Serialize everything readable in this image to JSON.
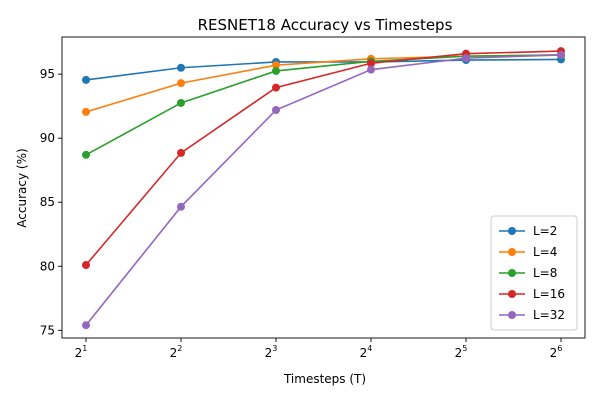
{
  "chart_data": {
    "type": "line",
    "title": "RESNET18 Accuracy vs Timesteps",
    "xlabel": "Timesteps (T)",
    "ylabel": "Accuracy (%)",
    "x_scale": "log2",
    "x": [
      2,
      4,
      8,
      16,
      32,
      64
    ],
    "x_tick_labels": [
      {
        "base": "2",
        "exp": "1"
      },
      {
        "base": "2",
        "exp": "2"
      },
      {
        "base": "2",
        "exp": "3"
      },
      {
        "base": "2",
        "exp": "4"
      },
      {
        "base": "2",
        "exp": "5"
      },
      {
        "base": "2",
        "exp": "6"
      }
    ],
    "y_ticks": [
      75,
      80,
      85,
      90,
      95
    ],
    "y_tick_labels": [
      "75",
      "80",
      "85",
      "90",
      "95"
    ],
    "ylim": [
      74.4,
      97.9
    ],
    "grid": false,
    "legend_position": "bottom-right",
    "series": [
      {
        "name": "L=2",
        "color": "#1f77b4",
        "values": [
          94.55,
          95.5,
          95.95,
          95.95,
          96.1,
          96.15
        ]
      },
      {
        "name": "L=4",
        "color": "#ff7f0e",
        "values": [
          92.05,
          94.3,
          95.7,
          96.2,
          96.4,
          96.5
        ]
      },
      {
        "name": "L=8",
        "color": "#2ca02c",
        "values": [
          88.7,
          92.75,
          95.25,
          96.0,
          96.4,
          96.5
        ]
      },
      {
        "name": "L=16",
        "color": "#d62728",
        "values": [
          80.1,
          88.85,
          93.95,
          95.85,
          96.6,
          96.8
        ]
      },
      {
        "name": "L=32",
        "color": "#9467bd",
        "values": [
          75.4,
          84.65,
          92.2,
          95.35,
          96.25,
          96.5
        ]
      }
    ]
  }
}
